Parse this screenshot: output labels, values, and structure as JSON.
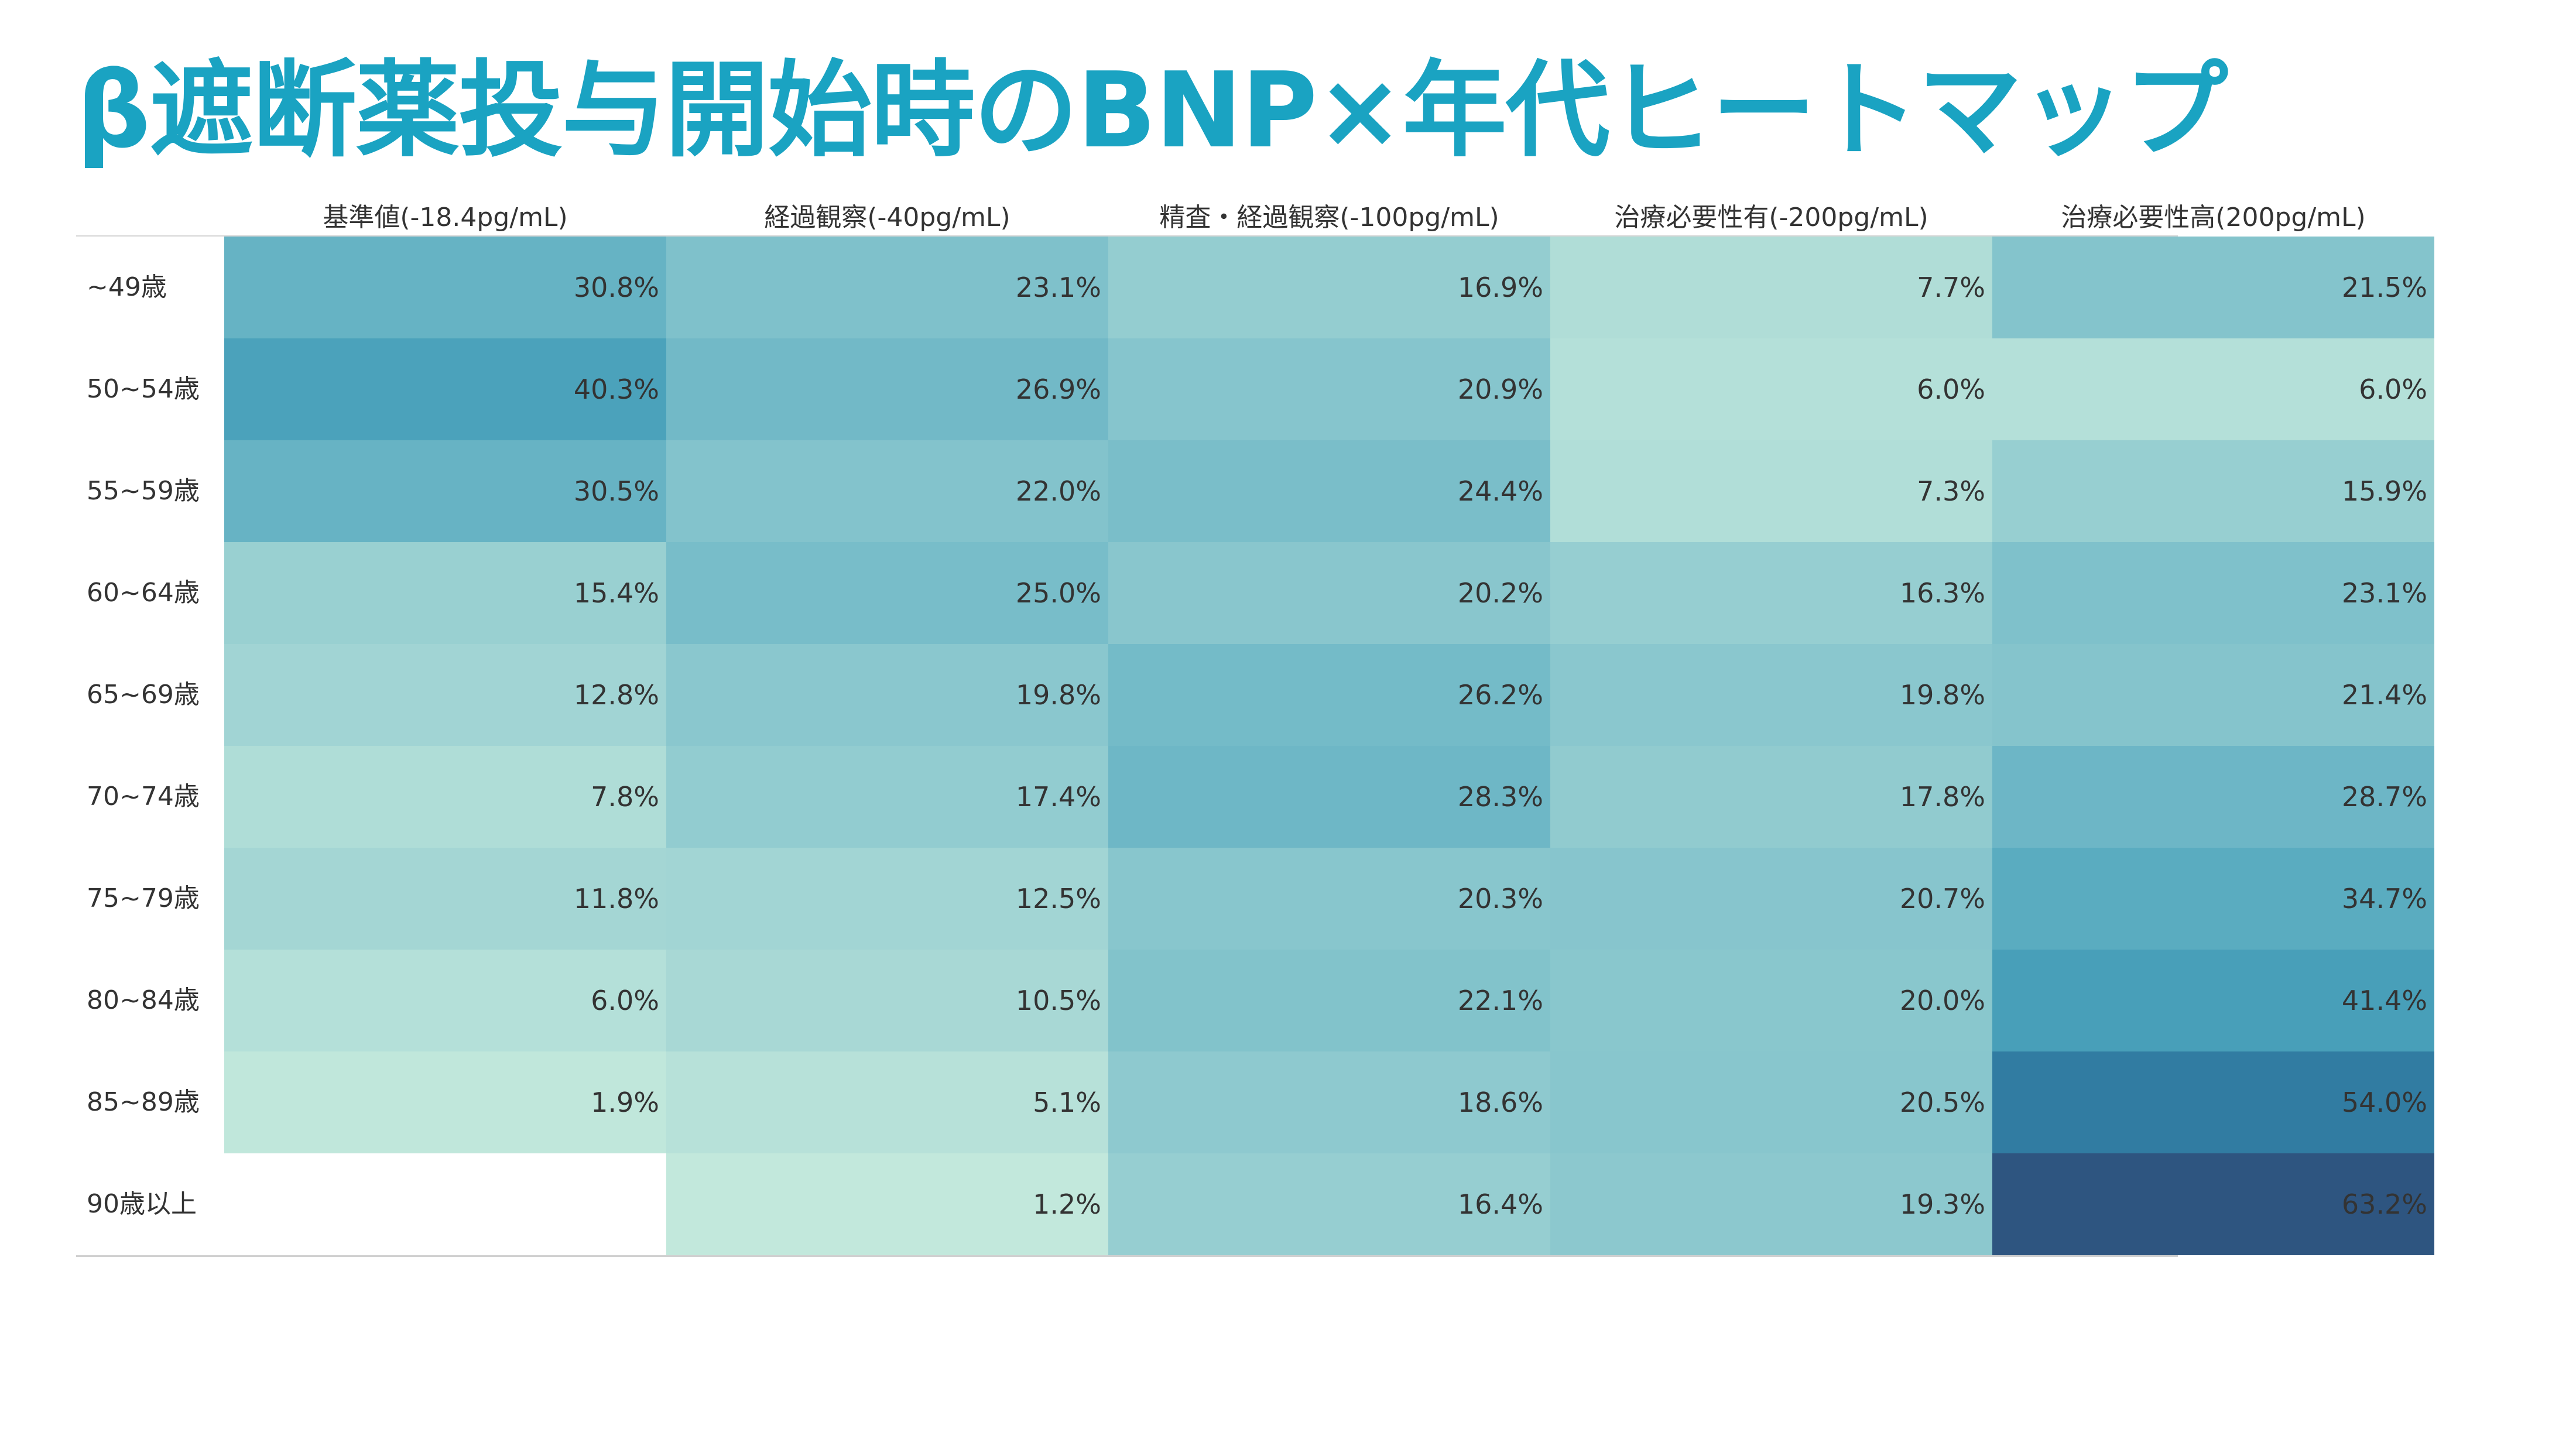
{
  "title": "β遮断薬投与開始時のBNP×年代ヒートマップ",
  "chart_data": {
    "type": "heatmap",
    "title": "β遮断薬投与開始時のBNP×年代ヒートマップ",
    "columns": [
      "基準値(-18.4pg/mL)",
      "経過観察(-40pg/mL)",
      "精査・経過観察(-100pg/mL)",
      "治療必要性有(-200pg/mL)",
      "治療必要性高(200pg/mL)"
    ],
    "rows": [
      "~49歳",
      "50~54歳",
      "55~59歳",
      "60~64歳",
      "65~69歳",
      "70~74歳",
      "75~79歳",
      "80~84歳",
      "85~89歳",
      "90歳以上"
    ],
    "values": [
      [
        30.8,
        23.1,
        16.9,
        7.7,
        21.5
      ],
      [
        40.3,
        26.9,
        20.9,
        6.0,
        6.0
      ],
      [
        30.5,
        22.0,
        24.4,
        7.3,
        15.9
      ],
      [
        15.4,
        25.0,
        20.2,
        16.3,
        23.1
      ],
      [
        12.8,
        19.8,
        26.2,
        19.8,
        21.4
      ],
      [
        7.8,
        17.4,
        28.3,
        17.8,
        28.7
      ],
      [
        11.8,
        12.5,
        20.3,
        20.7,
        34.7
      ],
      [
        6.0,
        10.5,
        22.1,
        20.0,
        41.4
      ],
      [
        1.9,
        5.1,
        18.6,
        20.5,
        54.0
      ],
      [
        null,
        1.2,
        16.4,
        19.3,
        63.2
      ]
    ],
    "labels": [
      [
        "30.8%",
        "23.1%",
        "16.9%",
        "7.7%",
        "21.5%"
      ],
      [
        "40.3%",
        "26.9%",
        "20.9%",
        "6.0%",
        "6.0%"
      ],
      [
        "30.5%",
        "22.0%",
        "24.4%",
        "7.3%",
        "15.9%"
      ],
      [
        "15.4%",
        "25.0%",
        "20.2%",
        "16.3%",
        "23.1%"
      ],
      [
        "12.8%",
        "19.8%",
        "26.2%",
        "19.8%",
        "21.4%"
      ],
      [
        "7.8%",
        "17.4%",
        "28.3%",
        "17.8%",
        "28.7%"
      ],
      [
        "11.8%",
        "12.5%",
        "20.3%",
        "20.7%",
        "34.7%"
      ],
      [
        "6.0%",
        "10.5%",
        "22.1%",
        "20.0%",
        "41.4%"
      ],
      [
        "1.9%",
        "5.1%",
        "18.6%",
        "20.5%",
        "54.0%"
      ],
      [
        "",
        "1.2%",
        "16.4%",
        "19.3%",
        "63.2%"
      ]
    ],
    "color_scale": [
      "#c2e8dc",
      "#9fd3d3",
      "#75bbc8",
      "#4fa6bd",
      "#328aae",
      "#2e5580"
    ],
    "color_range": [
      1.2,
      63.2
    ],
    "empty_color": "#ffffff"
  }
}
